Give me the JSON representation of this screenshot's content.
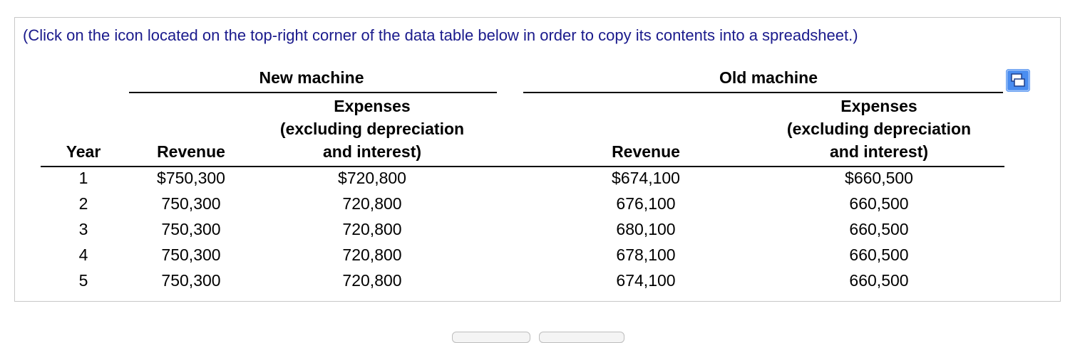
{
  "instruction": "(Click on the icon located on the top-right corner of the data table below in order to copy its contents into a spreadsheet.)",
  "groups": {
    "new": "New machine",
    "old": "Old machine"
  },
  "headers": {
    "year": "Year",
    "new_revenue": "Revenue",
    "new_expenses": [
      "Expenses",
      "(excluding depreciation",
      "and interest)"
    ],
    "old_revenue": "Revenue",
    "old_expenses": [
      "Expenses",
      "(excluding depreciation",
      "and interest)"
    ]
  },
  "rows": [
    {
      "year": "1",
      "new_revenue": "$750,300",
      "new_expenses": "$720,800",
      "old_revenue": "$674,100",
      "old_expenses": "$660,500"
    },
    {
      "year": "2",
      "new_revenue": "750,300",
      "new_expenses": "720,800",
      "old_revenue": "676,100",
      "old_expenses": "660,500"
    },
    {
      "year": "3",
      "new_revenue": "750,300",
      "new_expenses": "720,800",
      "old_revenue": "680,100",
      "old_expenses": "660,500"
    },
    {
      "year": "4",
      "new_revenue": "750,300",
      "new_expenses": "720,800",
      "old_revenue": "678,100",
      "old_expenses": "660,500"
    },
    {
      "year": "5",
      "new_revenue": "750,300",
      "new_expenses": "720,800",
      "old_revenue": "674,100",
      "old_expenses": "660,500"
    }
  ],
  "icons": {
    "copy": "copy-to-spreadsheet-icon"
  },
  "colors": {
    "instruction": "#1a1a8c",
    "icon": "#4a8df0"
  }
}
